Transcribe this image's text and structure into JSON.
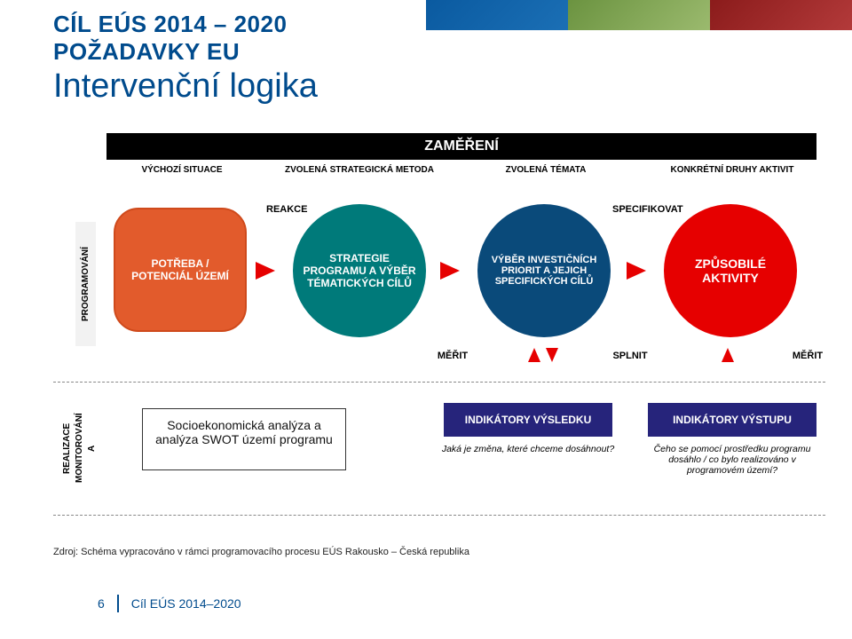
{
  "title": {
    "line1": "CÍL EÚS 2014 – 2020",
    "line2": "POŽADAVKY EU",
    "line3": "Intervenční logika",
    "line1_color": "#004b8d",
    "line2_color": "#004b8d"
  },
  "zamereni_header": "ZAMĚŘENÍ",
  "columns": {
    "c1": "VÝCHOZÍ SITUACE",
    "c2": "ZVOLENÁ STRATEGICKÁ METODA",
    "c3": "ZVOLENÁ TÉMATA",
    "c4": "KONKRÉTNÍ DRUHY AKTIVIT"
  },
  "bubbles": {
    "b1": "POTŘEBA / POTENCIÁL ÚZEMÍ",
    "b2": "STRATEGIE PROGRAMU A VÝBĚR TÉMATICKÝCH CÍLŮ",
    "b3": "VÝBĚR INVESTIČNÍCH PRIORIT A JEJICH SPECIFICKÝCH CÍLŮ",
    "b4": "ZPŮSOBILÉ AKTIVITY"
  },
  "flow_labels": {
    "reakce": "REAKCE",
    "specifikovat": "SPECIFIKOVAT",
    "merit": "MĚŘIT",
    "splnit": "SPLNIT"
  },
  "vertical_labels": {
    "programovani": "PROGRAMOVÁNÍ",
    "realizace": "REALIZACE",
    "a": "A",
    "monitorovani": "MONITOROVÁNÍ"
  },
  "soc_box": "Socioekonomická analýza a analýza SWOT území programu",
  "indicators": {
    "vysledku": "INDIKÁTORY VÝSLEDKU",
    "vystupu": "INDIKÁTORY VÝSTUPU",
    "caption_vysledku": "Jaká je změna, které chceme dosáhnout?",
    "caption_vystupu": "Čeho se pomocí prostředku programu dosáhlo / co bylo realizováno v programovém území?"
  },
  "source": "Zdroj: Schéma vypracováno v rámci programovacího procesu EÚS Rakousko – Česká republika",
  "footer": {
    "page": "6",
    "title": "Cíl EÚS 2014–2020"
  },
  "colors": {
    "orange": "#e25b2c",
    "teal": "#007a7a",
    "navy": "#0a4a7a",
    "red": "#e60000",
    "indigo": "#26247b",
    "arrow": "#e60000",
    "brand": "#004b8d"
  }
}
